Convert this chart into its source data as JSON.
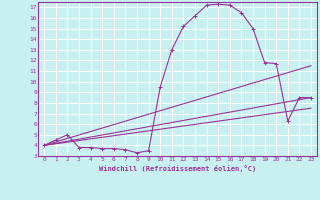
{
  "xlabel": "Windchill (Refroidissement éolien,°C)",
  "xlim": [
    -0.5,
    23.5
  ],
  "ylim": [
    3,
    17.5
  ],
  "yticks": [
    3,
    4,
    5,
    6,
    7,
    8,
    9,
    10,
    11,
    12,
    13,
    14,
    15,
    16,
    17
  ],
  "xticks": [
    0,
    1,
    2,
    3,
    4,
    5,
    6,
    7,
    8,
    9,
    10,
    11,
    12,
    13,
    14,
    15,
    16,
    17,
    18,
    19,
    20,
    21,
    22,
    23
  ],
  "background_color": "#c8f0f0",
  "line_color": "#993399",
  "grid_color": "#ffffff",
  "series": [
    {
      "x": [
        0,
        1,
        2,
        3,
        4,
        5,
        6,
        7,
        8,
        9,
        10,
        11,
        12,
        13,
        14,
        15,
        16,
        17,
        18,
        19,
        20,
        21,
        22,
        23
      ],
      "y": [
        4.0,
        4.5,
        5.0,
        3.8,
        3.8,
        3.7,
        3.7,
        3.6,
        3.3,
        3.5,
        9.5,
        13.0,
        15.2,
        16.2,
        17.2,
        17.3,
        17.2,
        16.5,
        15.0,
        11.8,
        11.7,
        6.3,
        8.5,
        8.5
      ],
      "marker": "+"
    },
    {
      "x": [
        0,
        23
      ],
      "y": [
        4.0,
        11.5
      ],
      "marker": null
    },
    {
      "x": [
        0,
        23
      ],
      "y": [
        4.0,
        8.5
      ],
      "marker": null
    },
    {
      "x": [
        0,
        23
      ],
      "y": [
        4.0,
        7.5
      ],
      "marker": null
    }
  ]
}
